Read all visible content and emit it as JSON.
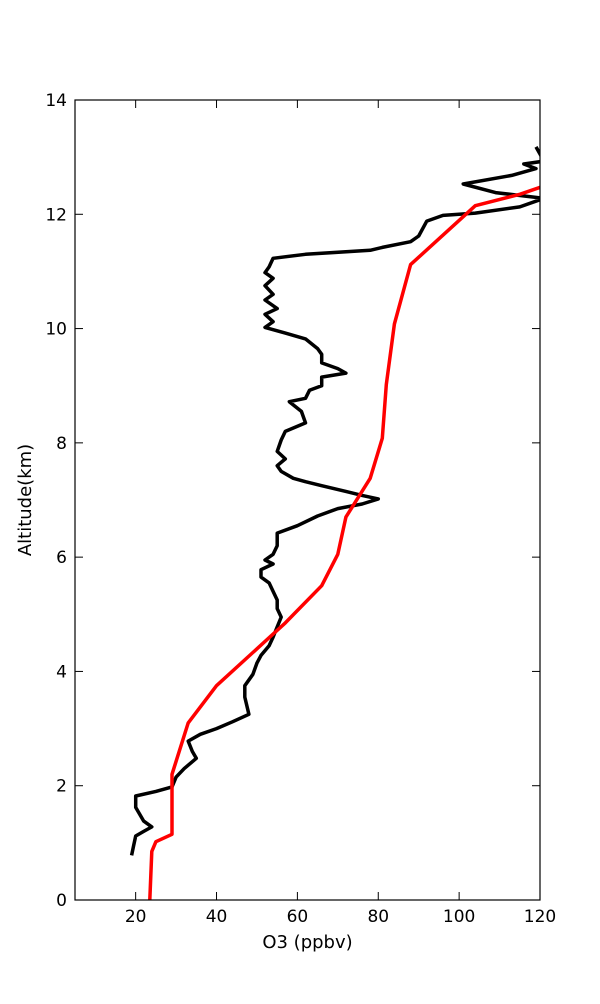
{
  "chart_data": {
    "type": "line",
    "title": "",
    "xlabel": "O3 (ppbv)",
    "ylabel": "Altitude(km)",
    "xlim": [
      5,
      120
    ],
    "ylim": [
      0,
      14
    ],
    "x_ticks": [
      20,
      40,
      60,
      80,
      100,
      120
    ],
    "y_ticks": [
      0,
      2,
      4,
      6,
      8,
      10,
      12,
      14
    ],
    "grid": false,
    "legend": "none",
    "series": [
      {
        "color": "#000000",
        "points": [
          [
            119,
            13.18
          ],
          [
            121,
            12.93
          ],
          [
            116,
            12.88
          ],
          [
            119,
            12.8
          ],
          [
            113,
            12.68
          ],
          [
            101,
            12.53
          ],
          [
            109,
            12.38
          ],
          [
            121,
            12.28
          ],
          [
            115,
            12.13
          ],
          [
            104,
            12.02
          ],
          [
            96,
            11.98
          ],
          [
            92,
            11.88
          ],
          [
            90,
            11.62
          ],
          [
            88,
            11.52
          ],
          [
            81,
            11.42
          ],
          [
            78,
            11.37
          ],
          [
            62,
            11.3
          ],
          [
            54,
            11.23
          ],
          [
            53,
            11.08
          ],
          [
            52,
            10.98
          ],
          [
            54,
            10.88
          ],
          [
            52,
            10.75
          ],
          [
            54,
            10.6
          ],
          [
            52,
            10.5
          ],
          [
            55,
            10.35
          ],
          [
            52,
            10.25
          ],
          [
            54,
            10.12
          ],
          [
            52,
            10.02
          ],
          [
            57,
            9.92
          ],
          [
            62,
            9.82
          ],
          [
            65,
            9.65
          ],
          [
            66,
            9.55
          ],
          [
            66,
            9.4
          ],
          [
            70,
            9.3
          ],
          [
            72,
            9.22
          ],
          [
            66,
            9.15
          ],
          [
            66,
            9.0
          ],
          [
            63,
            8.92
          ],
          [
            62,
            8.78
          ],
          [
            58,
            8.72
          ],
          [
            61,
            8.55
          ],
          [
            62,
            8.35
          ],
          [
            57,
            8.2
          ],
          [
            56,
            8.05
          ],
          [
            55,
            7.85
          ],
          [
            57,
            7.72
          ],
          [
            55,
            7.6
          ],
          [
            56,
            7.5
          ],
          [
            59,
            7.38
          ],
          [
            62,
            7.32
          ],
          [
            66,
            7.25
          ],
          [
            72,
            7.15
          ],
          [
            76,
            7.08
          ],
          [
            80,
            7.02
          ],
          [
            76,
            6.93
          ],
          [
            70,
            6.85
          ],
          [
            65,
            6.72
          ],
          [
            60,
            6.55
          ],
          [
            55,
            6.42
          ],
          [
            55,
            6.2
          ],
          [
            54,
            6.05
          ],
          [
            52,
            5.95
          ],
          [
            54,
            5.88
          ],
          [
            51,
            5.78
          ],
          [
            51,
            5.65
          ],
          [
            53,
            5.55
          ],
          [
            54,
            5.4
          ],
          [
            55,
            5.25
          ],
          [
            55,
            5.1
          ],
          [
            56,
            4.95
          ],
          [
            55,
            4.78
          ],
          [
            54,
            4.6
          ],
          [
            53,
            4.45
          ],
          [
            51,
            4.28
          ],
          [
            50,
            4.15
          ],
          [
            49,
            3.95
          ],
          [
            47,
            3.75
          ],
          [
            47,
            3.55
          ],
          [
            48,
            3.25
          ],
          [
            44,
            3.12
          ],
          [
            40,
            3.0
          ],
          [
            36,
            2.9
          ],
          [
            33,
            2.78
          ],
          [
            34,
            2.6
          ],
          [
            35,
            2.48
          ],
          [
            32,
            2.3
          ],
          [
            30,
            2.15
          ],
          [
            29,
            1.98
          ],
          [
            25,
            1.9
          ],
          [
            20,
            1.82
          ],
          [
            20,
            1.62
          ],
          [
            21,
            1.5
          ],
          [
            22,
            1.38
          ],
          [
            24,
            1.28
          ],
          [
            22,
            1.2
          ],
          [
            20,
            1.12
          ],
          [
            19.5,
            0.95
          ],
          [
            19,
            0.78
          ]
        ]
      },
      {
        "color": "#ff0000",
        "points": [
          [
            122,
            12.52
          ],
          [
            115,
            12.35
          ],
          [
            104,
            12.15
          ],
          [
            88,
            11.12
          ],
          [
            84,
            10.08
          ],
          [
            82,
            9.02
          ],
          [
            81,
            8.08
          ],
          [
            78,
            7.38
          ],
          [
            72,
            6.7
          ],
          [
            70,
            6.05
          ],
          [
            66,
            5.5
          ],
          [
            57,
            4.85
          ],
          [
            40,
            3.75
          ],
          [
            33,
            3.1
          ],
          [
            29,
            2.2
          ],
          [
            29,
            1.15
          ],
          [
            25,
            1.02
          ],
          [
            24,
            0.85
          ],
          [
            23.5,
            0
          ]
        ]
      }
    ]
  }
}
